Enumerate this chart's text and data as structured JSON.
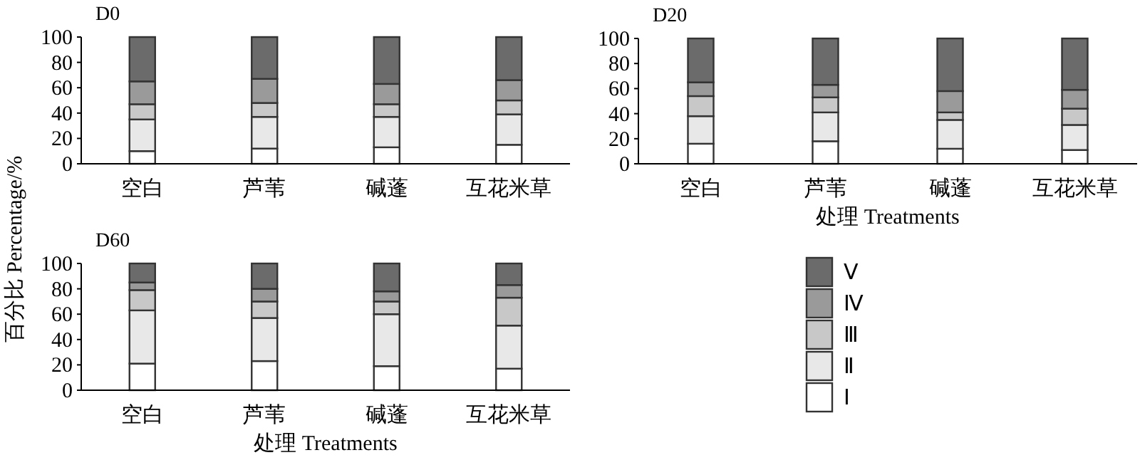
{
  "chart_data": [
    {
      "type": "bar",
      "title": "D0",
      "categories": [
        "空白",
        "芦苇",
        "碱蓬",
        "互花米草"
      ],
      "stacked": true,
      "ylim": [
        0,
        100
      ],
      "yticks": [
        0,
        20,
        40,
        60,
        80,
        100
      ],
      "legend": false,
      "series": [
        {
          "color": "#ffffff",
          "values": [
            10,
            12,
            13,
            15
          ]
        },
        {
          "color": "#e8e8e8",
          "values": [
            25,
            25,
            24,
            24
          ]
        },
        {
          "color": "#c8c8c8",
          "values": [
            12,
            11,
            10,
            11
          ]
        },
        {
          "color": "#9a9a9a",
          "values": [
            18,
            19,
            16,
            16
          ]
        },
        {
          "color": "#6b6b6b",
          "values": [
            35,
            33,
            37,
            34
          ]
        }
      ]
    },
    {
      "type": "bar",
      "title": "D20",
      "xlabel": "处理 Treatments",
      "categories": [
        "空白",
        "芦苇",
        "碱蓬",
        "互花米草"
      ],
      "stacked": true,
      "ylim": [
        0,
        100
      ],
      "yticks": [
        0,
        20,
        40,
        60,
        80,
        100
      ],
      "legend": false,
      "series": [
        {
          "color": "#ffffff",
          "values": [
            16,
            18,
            12,
            11
          ]
        },
        {
          "color": "#e8e8e8",
          "values": [
            22,
            23,
            23,
            20
          ]
        },
        {
          "color": "#c8c8c8",
          "values": [
            16,
            12,
            6,
            13
          ]
        },
        {
          "color": "#9a9a9a",
          "values": [
            11,
            10,
            17,
            15
          ]
        },
        {
          "color": "#6b6b6b",
          "values": [
            35,
            37,
            42,
            41
          ]
        }
      ]
    },
    {
      "type": "bar",
      "title": "D60",
      "xlabel": "处理 Treatments",
      "ylabel": "百分比 Percentage/%",
      "categories": [
        "空白",
        "芦苇",
        "碱蓬",
        "互花米草"
      ],
      "stacked": true,
      "ylim": [
        0,
        100
      ],
      "yticks": [
        0,
        20,
        40,
        60,
        80,
        100
      ],
      "legend": "right",
      "series": [
        {
          "name": "Ⅰ",
          "color": "#ffffff",
          "values": [
            21,
            23,
            19,
            17
          ]
        },
        {
          "name": "Ⅱ",
          "color": "#e8e8e8",
          "values": [
            42,
            34,
            41,
            34
          ]
        },
        {
          "name": "Ⅲ",
          "color": "#c8c8c8",
          "values": [
            16,
            13,
            10,
            22
          ]
        },
        {
          "name": "Ⅳ",
          "color": "#9a9a9a",
          "values": [
            6,
            10,
            8,
            10
          ]
        },
        {
          "name": "Ⅴ",
          "color": "#6b6b6b",
          "values": [
            15,
            20,
            22,
            17
          ]
        }
      ]
    }
  ]
}
